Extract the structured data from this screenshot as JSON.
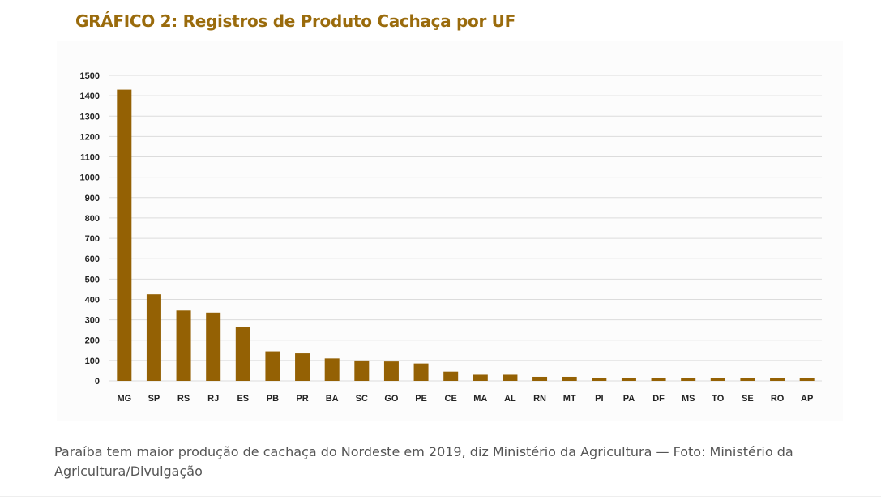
{
  "chart_title": "GRÁFICO 2: Registros de Produto Cachaça por UF",
  "caption": "Paraíba tem maior produção de cachaça do Nordeste em 2019, diz Ministério da Agricultura — Foto: Ministério da Agricultura/Divulgação",
  "chart_data": {
    "type": "bar",
    "title": "GRÁFICO 2: Registros de Produto Cachaça por UF",
    "xlabel": "",
    "ylabel": "",
    "categories": [
      "MG",
      "SP",
      "RS",
      "RJ",
      "ES",
      "PB",
      "PR",
      "BA",
      "SC",
      "GO",
      "PE",
      "CE",
      "MA",
      "AL",
      "RN",
      "MT",
      "PI",
      "PA",
      "DF",
      "MS",
      "TO",
      "SE",
      "RO",
      "AP"
    ],
    "values": [
      1430,
      425,
      345,
      335,
      265,
      145,
      135,
      110,
      100,
      95,
      85,
      45,
      30,
      30,
      20,
      20,
      15,
      15,
      15,
      15,
      15,
      15,
      15,
      15
    ],
    "y_ticks": [
      "0",
      "100",
      "200",
      "300",
      "400",
      "500",
      "600",
      "700",
      "800",
      "900",
      "1000",
      "1100",
      "1200",
      "1300",
      "1400",
      "1500"
    ],
    "ylim": [
      0,
      1500
    ],
    "grid": true,
    "legend": "none",
    "bar_color": "#946104",
    "grid_color": "#dcdcdc"
  }
}
